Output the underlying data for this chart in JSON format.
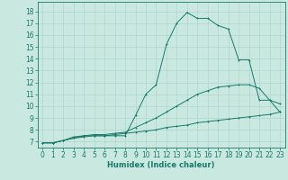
{
  "bg_color": "#c8e8e0",
  "grid_color": "#b0d4cc",
  "line_color": "#1a7a6a",
  "xlabel": "Humidex (Indice chaleur)",
  "ylabel_ticks": [
    7,
    8,
    9,
    10,
    11,
    12,
    13,
    14,
    15,
    16,
    17,
    18
  ],
  "xticks": [
    0,
    1,
    2,
    3,
    4,
    5,
    6,
    7,
    8,
    9,
    10,
    11,
    12,
    13,
    14,
    15,
    16,
    17,
    18,
    19,
    20,
    21,
    22,
    23
  ],
  "xlim": [
    -0.5,
    23.5
  ],
  "ylim": [
    6.5,
    18.8
  ],
  "line1_x": [
    0,
    1,
    2,
    3,
    4,
    5,
    6,
    7,
    8,
    9,
    10,
    11,
    12,
    13,
    14,
    15,
    16,
    17,
    18,
    19,
    20,
    21,
    22,
    23
  ],
  "line1_y": [
    6.9,
    6.9,
    7.1,
    7.3,
    7.5,
    7.5,
    7.5,
    7.5,
    7.5,
    9.2,
    11.0,
    11.8,
    15.2,
    17.0,
    17.9,
    17.4,
    17.4,
    16.8,
    16.5,
    13.9,
    13.9,
    10.5,
    10.5,
    9.5
  ],
  "line2_x": [
    0,
    1,
    2,
    3,
    4,
    5,
    6,
    7,
    8,
    9,
    10,
    11,
    12,
    13,
    14,
    15,
    16,
    17,
    18,
    19,
    20,
    21,
    22,
    23
  ],
  "line2_y": [
    6.9,
    6.9,
    7.1,
    7.4,
    7.5,
    7.6,
    7.6,
    7.7,
    7.8,
    8.2,
    8.6,
    9.0,
    9.5,
    10.0,
    10.5,
    11.0,
    11.3,
    11.6,
    11.7,
    11.8,
    11.8,
    11.5,
    10.5,
    10.2
  ],
  "line3_x": [
    0,
    1,
    2,
    3,
    4,
    5,
    6,
    7,
    8,
    9,
    10,
    11,
    12,
    13,
    14,
    15,
    16,
    17,
    18,
    19,
    20,
    21,
    22,
    23
  ],
  "line3_y": [
    6.9,
    6.9,
    7.1,
    7.3,
    7.4,
    7.5,
    7.5,
    7.6,
    7.7,
    7.8,
    7.9,
    8.0,
    8.2,
    8.3,
    8.4,
    8.6,
    8.7,
    8.8,
    8.9,
    9.0,
    9.1,
    9.2,
    9.3,
    9.5
  ],
  "marker_size": 2.0,
  "line_width": 0.7,
  "tick_labelsize": 5.5,
  "xlabel_fontsize": 6.0
}
